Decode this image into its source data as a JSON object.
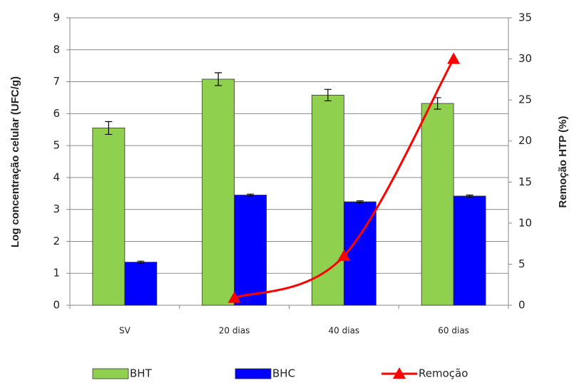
{
  "chart_data": {
    "type": "bar",
    "categories": [
      "SV",
      "20 dias",
      "40 dias",
      "60 dias"
    ],
    "series": [
      {
        "name": "BHT",
        "color": "#8fd14f",
        "values": [
          5.55,
          7.08,
          6.58,
          6.32
        ],
        "errors": [
          0.2,
          0.2,
          0.18,
          0.18
        ]
      },
      {
        "name": "BHC",
        "color": "#0000ff",
        "values": [
          1.35,
          3.45,
          3.24,
          3.42
        ],
        "errors": [
          0.03,
          0.03,
          0.03,
          0.03
        ]
      },
      {
        "name": "Remoção",
        "type": "line",
        "axis": "y2",
        "color": "#ff0000",
        "values": [
          null,
          0.9,
          6,
          30
        ]
      }
    ],
    "y_label": "Log concentração celular  (UFC/g)",
    "y2_label": "Remoção HTP (%)",
    "ylim": [
      0,
      9
    ],
    "yticks": [
      0,
      1,
      2,
      3,
      4,
      5,
      6,
      7,
      8,
      9
    ],
    "y2lim": [
      0,
      35
    ],
    "y2ticks": [
      0,
      5,
      10,
      15,
      20,
      25,
      30,
      35
    ],
    "grid": true,
    "legend": "bottom"
  }
}
